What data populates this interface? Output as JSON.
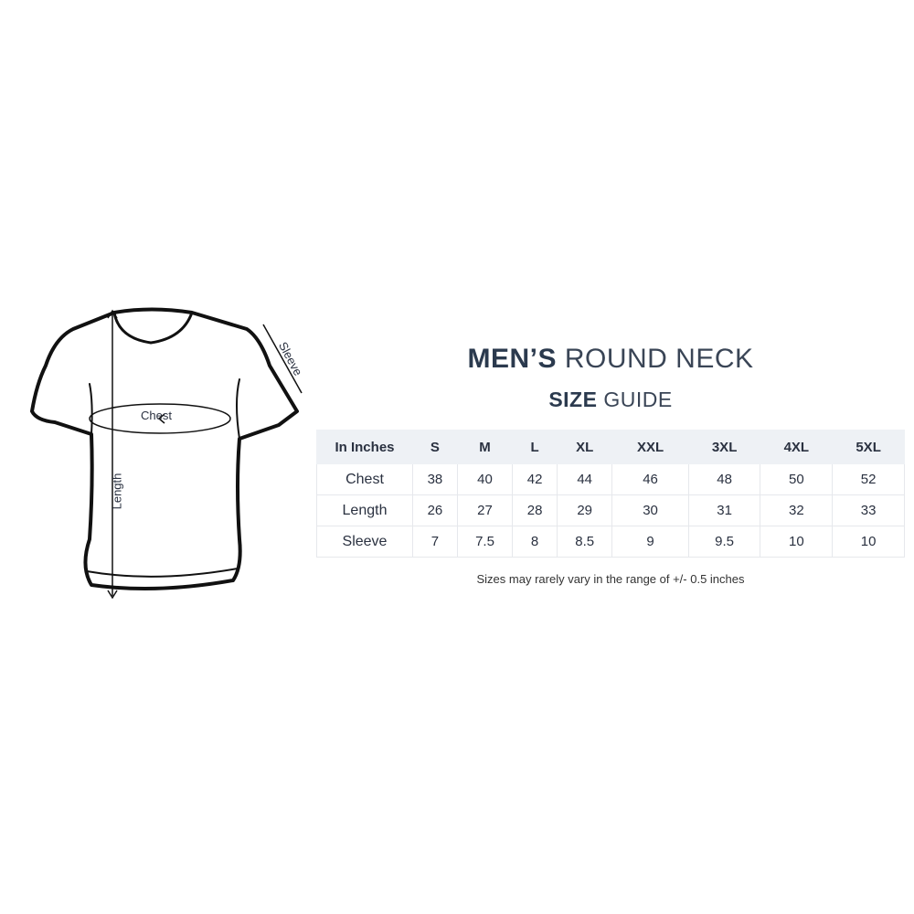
{
  "diagram": {
    "chest_label": "Chest",
    "length_label": "Length",
    "sleeve_label": "Sleeve"
  },
  "title": {
    "bold": "MEN’S",
    "rest": "ROUND NECK"
  },
  "subtitle": {
    "bold": "SIZE",
    "rest": "GUIDE"
  },
  "table": {
    "headers": [
      "In Inches",
      "S",
      "M",
      "L",
      "XL",
      "XXL",
      "3XL",
      "4XL",
      "5XL"
    ],
    "rows": [
      {
        "label": "Chest",
        "values": [
          "38",
          "40",
          "42",
          "44",
          "46",
          "48",
          "50",
          "52"
        ]
      },
      {
        "label": "Length",
        "values": [
          "26",
          "27",
          "28",
          "29",
          "30",
          "31",
          "32",
          "33"
        ]
      },
      {
        "label": "Sleeve",
        "values": [
          "7",
          "7.5",
          "8",
          "8.5",
          "9",
          "9.5",
          "10",
          "10"
        ]
      }
    ]
  },
  "note": "Sizes may rarely vary in the range of +/- 0.5 inches",
  "colors": {
    "title": "#2b3a4e",
    "header_bg": "#eef1f5"
  }
}
